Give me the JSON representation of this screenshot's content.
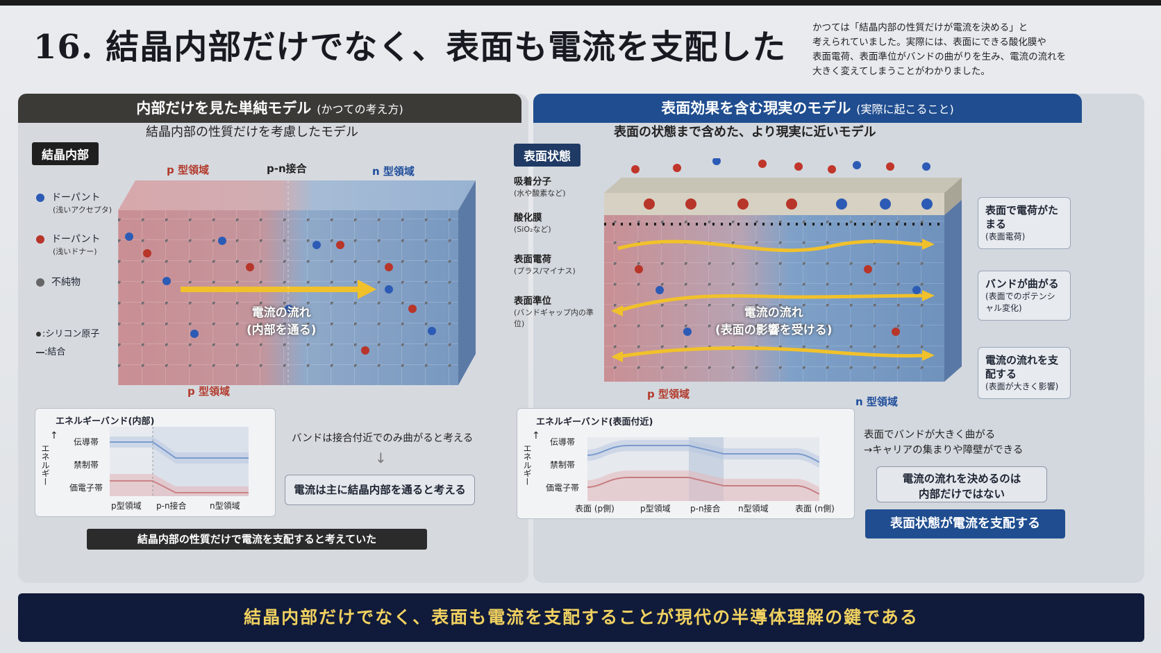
{
  "title": "16. 結晶内部だけでなく、表面も電流を支配した",
  "intro": [
    "かつては「結晶内部の性質だけが電流を決める」と",
    "考えられていました。実際には、表面にできる酸化膜や",
    "表面電荷、表面準位がバンドの曲がりを生み、電流の流れを",
    "大きく変えてしまうことがわかりました。"
  ],
  "left": {
    "header": "内部だけを見た単純モデル",
    "header_sub": "(かつての考え方)",
    "subtitle": "結晶内部の性質だけを考慮したモデル",
    "tag": "結晶内部",
    "region_p_top": "p 型領域",
    "region_pn": "p-n接合",
    "region_n_top": "n 型領域",
    "region_p_bottom": "p 型領域",
    "legend": {
      "acceptor": "ドーパント",
      "acceptor_note": "(浅いアクセプタ)",
      "donor": "ドーパント",
      "donor_note": "(浅いドナー)",
      "impurity": "不純物",
      "silicon": ":シリコン原子",
      "bond": ":結合"
    },
    "current_line1": "電流の流れ",
    "current_line2": "(内部を通る)",
    "energy": {
      "title": "エネルギーバンド(内部)",
      "yaxis": "エネルギー",
      "conduction": "伝導帯",
      "gap": "禁制帯",
      "valence": "価電子帯",
      "x1": "p型領域",
      "x2": "p-n接合",
      "x3": "n型領域"
    },
    "note1": "バンドは接合付近でのみ曲がると考える",
    "note2": "電流は主に結晶内部を通ると考える",
    "strip": "結晶内部の性質だけで電流を支配すると考えていた"
  },
  "right": {
    "header": "表面効果を含む現実のモデル",
    "header_sub": "(実際に起こること)",
    "subtitle": "表面の状態まで含めた、より現実に近いモデル",
    "tag": "表面状態",
    "labels": {
      "adsorbed": "吸着分子",
      "adsorbed_note": "(水や酸素など)",
      "oxide": "酸化膜",
      "oxide_note": "(SiO₂など)",
      "surface_charge": "表面電荷",
      "surface_charge_note": "(プラス/マイナス)",
      "surface_states": "表面準位",
      "surface_states_note": "(バンドギャップ内の準位)"
    },
    "region_p": "p 型領域",
    "region_n": "n 型領域",
    "current_line1": "電流の流れ",
    "current_line2": "(表面の影響を受ける)",
    "callouts": [
      {
        "title": "表面で電荷がたまる",
        "note": "(表面電荷)"
      },
      {
        "title": "バンドが曲がる",
        "note": "(表面でのポテンシャル変化)"
      },
      {
        "title": "電流の流れを支配する",
        "note": "(表面が大きく影響)"
      }
    ],
    "energy": {
      "title": "エネルギーバンド(表面付近)",
      "yaxis": "エネルギー",
      "conduction": "伝導帯",
      "gap": "禁制帯",
      "valence": "価電子帯",
      "x1": "表面 (p側)",
      "x2": "p型領域",
      "x3": "p-n接合",
      "x4": "n型領域",
      "x5": "表面 (n側)"
    },
    "note1": "表面でバンドが大きく曲がる",
    "note2": "→キャリアの集まりや障壁ができる",
    "box_note_line1": "電流の流れを決めるのは",
    "box_note_line2": "内部だけではない",
    "strip": "表面状態が電流を支配する"
  },
  "footer": "結晶内部だけでなく、表面も電流を支配することが現代の半導体理解の鍵である",
  "colors": {
    "p_region": "#c98f94",
    "n_region": "#7fa1c8",
    "arrow": "#f1c12b",
    "navy": "#101a3a",
    "header_blue": "#1f4d8f"
  }
}
